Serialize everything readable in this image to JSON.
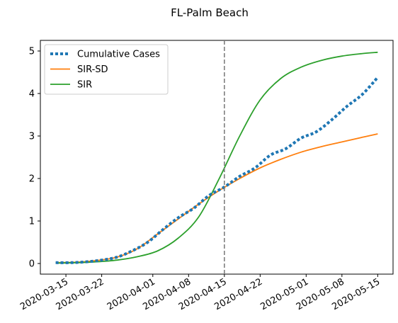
{
  "chart_data": {
    "type": "line",
    "title": "FL-Palm Beach",
    "xlabel": "",
    "ylabel": "",
    "x_start": "2020-03-13",
    "x_end": "2020-05-15",
    "xlim": [
      "2020-03-10",
      "2020-05-18"
    ],
    "ylim": [
      -0.25,
      5.25
    ],
    "x_ticks": [
      "2020-03-15",
      "2020-03-22",
      "2020-04-01",
      "2020-04-08",
      "2020-04-15",
      "2020-04-22",
      "2020-05-01",
      "2020-05-08",
      "2020-05-15"
    ],
    "y_ticks": [
      "0",
      "1",
      "2",
      "3",
      "4",
      "5"
    ],
    "vline": {
      "x": "2020-04-15",
      "color": "#7f7f7f",
      "style": "dashed"
    },
    "legend": {
      "position": "top-left"
    },
    "grid": false,
    "series": [
      {
        "name": "Cumulative Cases",
        "color": "#1f77b4",
        "style": "dotted",
        "points": [
          [
            "2020-03-13",
            0.02
          ],
          [
            "2020-03-16",
            0.02
          ],
          [
            "2020-03-19",
            0.04
          ],
          [
            "2020-03-22",
            0.08
          ],
          [
            "2020-03-25",
            0.15
          ],
          [
            "2020-03-28",
            0.3
          ],
          [
            "2020-03-31",
            0.5
          ],
          [
            "2020-04-03",
            0.8
          ],
          [
            "2020-04-06",
            1.08
          ],
          [
            "2020-04-09",
            1.3
          ],
          [
            "2020-04-12",
            1.6
          ],
          [
            "2020-04-15",
            1.8
          ],
          [
            "2020-04-18",
            2.05
          ],
          [
            "2020-04-21",
            2.25
          ],
          [
            "2020-04-24",
            2.55
          ],
          [
            "2020-04-27",
            2.7
          ],
          [
            "2020-04-30",
            2.95
          ],
          [
            "2020-05-03",
            3.1
          ],
          [
            "2020-05-06",
            3.38
          ],
          [
            "2020-05-09",
            3.7
          ],
          [
            "2020-05-12",
            3.98
          ],
          [
            "2020-05-15",
            4.38
          ]
        ]
      },
      {
        "name": "SIR-SD",
        "color": "#ff7f0e",
        "style": "solid",
        "points": [
          [
            "2020-03-13",
            0.02
          ],
          [
            "2020-03-17",
            0.03
          ],
          [
            "2020-03-21",
            0.07
          ],
          [
            "2020-03-25",
            0.15
          ],
          [
            "2020-03-29",
            0.35
          ],
          [
            "2020-04-02",
            0.7
          ],
          [
            "2020-04-06",
            1.05
          ],
          [
            "2020-04-10",
            1.4
          ],
          [
            "2020-04-14",
            1.72
          ],
          [
            "2020-04-18",
            2.0
          ],
          [
            "2020-04-22",
            2.25
          ],
          [
            "2020-04-26",
            2.45
          ],
          [
            "2020-04-30",
            2.62
          ],
          [
            "2020-05-04",
            2.75
          ],
          [
            "2020-05-08",
            2.86
          ],
          [
            "2020-05-12",
            2.97
          ],
          [
            "2020-05-15",
            3.05
          ]
        ]
      },
      {
        "name": "SIR",
        "color": "#2ca02c",
        "style": "solid",
        "points": [
          [
            "2020-03-13",
            0.01
          ],
          [
            "2020-03-17",
            0.02
          ],
          [
            "2020-03-21",
            0.04
          ],
          [
            "2020-03-25",
            0.08
          ],
          [
            "2020-03-29",
            0.16
          ],
          [
            "2020-04-02",
            0.3
          ],
          [
            "2020-04-06",
            0.6
          ],
          [
            "2020-04-10",
            1.1
          ],
          [
            "2020-04-14",
            2.0
          ],
          [
            "2020-04-18",
            3.0
          ],
          [
            "2020-04-22",
            3.85
          ],
          [
            "2020-04-26",
            4.35
          ],
          [
            "2020-04-30",
            4.62
          ],
          [
            "2020-05-04",
            4.78
          ],
          [
            "2020-05-08",
            4.88
          ],
          [
            "2020-05-12",
            4.94
          ],
          [
            "2020-05-15",
            4.97
          ]
        ]
      }
    ]
  }
}
